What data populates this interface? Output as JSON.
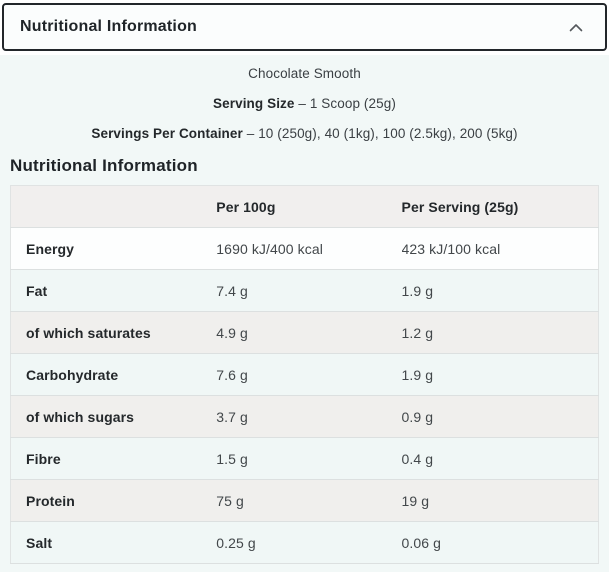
{
  "accordion": {
    "title": "Nutritional Information",
    "state_icon": "chevron-up-icon",
    "expanded": true
  },
  "product_info": {
    "flavour": "Chocolate Smooth",
    "serving_size": {
      "label": "Serving Size",
      "separator": "–",
      "value": "1 Scoop (25g)"
    },
    "servings_per_container": {
      "label": "Servings Per Container",
      "separator": "–",
      "value": "10 (250g), 40 (1kg), 100 (2.5kg), 200 (5kg)"
    }
  },
  "section": {
    "heading": "Nutritional Information",
    "table": {
      "columns": [
        "",
        "Per 100g",
        "Per Serving (25g)"
      ],
      "rows": [
        {
          "label": "Energy",
          "per_100g": "1690 kJ/400 kcal",
          "per_serving": "423 kJ/100 kcal"
        },
        {
          "label": "Fat",
          "per_100g": "7.4 g",
          "per_serving": "1.9 g"
        },
        {
          "label": "of which saturates",
          "per_100g": "4.9 g",
          "per_serving": "1.2 g"
        },
        {
          "label": "Carbohydrate",
          "per_100g": "7.6 g",
          "per_serving": "1.9 g"
        },
        {
          "label": "of which sugars",
          "per_100g": "3.7 g",
          "per_serving": "0.9 g"
        },
        {
          "label": "Fibre",
          "per_100g": "1.5 g",
          "per_serving": "0.4 g"
        },
        {
          "label": "Protein",
          "per_100g": "75 g",
          "per_serving": "19 g"
        },
        {
          "label": "Salt",
          "per_100g": "0.25 g",
          "per_serving": "0.06 g"
        }
      ]
    }
  },
  "colors": {
    "accordion_border": "#22262a",
    "panel_background": "#f2f8f7",
    "row_gray": "#f0efed",
    "row_mint": "#f0f7f6",
    "row_white": "#fdfefe",
    "text_dark": "#24282b",
    "text_value": "#42474a"
  }
}
